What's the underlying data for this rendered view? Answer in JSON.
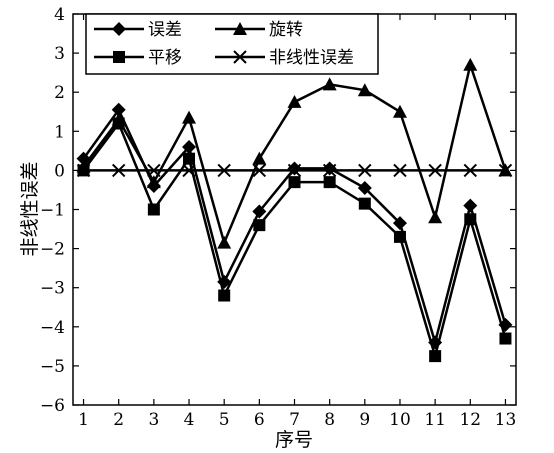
{
  "chart_data": {
    "type": "line",
    "xlabel": "序号",
    "ylabel": "非线性误差",
    "xlim": [
      0.7,
      13.3
    ],
    "ylim": [
      -6,
      4
    ],
    "x": [
      1,
      2,
      3,
      4,
      5,
      6,
      7,
      8,
      9,
      10,
      11,
      12,
      13
    ],
    "x_ticks": [
      "1",
      "2",
      "3",
      "4",
      "5",
      "6",
      "7",
      "8",
      "9",
      "10",
      "11",
      "12",
      "13"
    ],
    "y_ticks": [
      "−6",
      "−5",
      "−4",
      "−3",
      "−2",
      "−1",
      "0",
      "1",
      "2",
      "3",
      "4"
    ],
    "y_tick_values": [
      -6,
      -5,
      -4,
      -3,
      -2,
      -1,
      0,
      1,
      2,
      3,
      4
    ],
    "legend_position": "top-left",
    "series": [
      {
        "name": "误差",
        "marker": "diamond",
        "values": [
          0.3,
          1.55,
          -0.4,
          0.6,
          -2.85,
          -1.05,
          0.05,
          0.05,
          -0.45,
          -1.35,
          -4.4,
          -0.9,
          -3.95
        ]
      },
      {
        "name": "旋转",
        "marker": "triangle",
        "values": [
          0.1,
          1.3,
          -0.3,
          1.35,
          -1.85,
          0.3,
          1.75,
          2.2,
          2.05,
          1.5,
          -1.2,
          2.7,
          0.0
        ]
      },
      {
        "name": "平移",
        "marker": "square",
        "values": [
          0.0,
          1.2,
          -1.0,
          0.3,
          -3.2,
          -1.4,
          -0.3,
          -0.3,
          -0.85,
          -1.7,
          -4.75,
          -1.25,
          -4.3
        ]
      },
      {
        "name": "非线性误差",
        "marker": "x",
        "values": [
          0,
          0,
          0,
          0,
          0,
          0,
          0,
          0,
          0,
          0,
          0,
          0,
          0
        ]
      }
    ]
  }
}
